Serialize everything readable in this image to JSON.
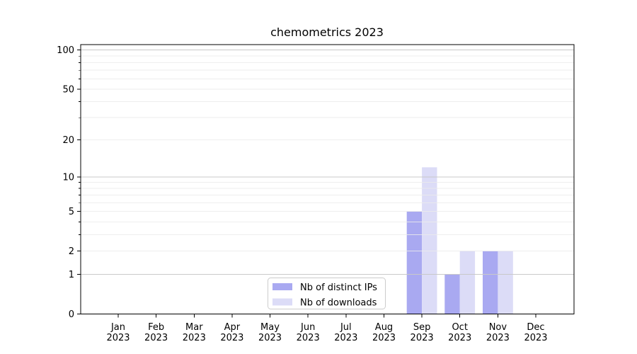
{
  "chart_data": {
    "type": "bar",
    "title": "chemometrics 2023",
    "categories": [
      {
        "line1": "Jan",
        "line2": "2023"
      },
      {
        "line1": "Feb",
        "line2": "2023"
      },
      {
        "line1": "Mar",
        "line2": "2023"
      },
      {
        "line1": "Apr",
        "line2": "2023"
      },
      {
        "line1": "May",
        "line2": "2023"
      },
      {
        "line1": "Jun",
        "line2": "2023"
      },
      {
        "line1": "Jul",
        "line2": "2023"
      },
      {
        "line1": "Aug",
        "line2": "2023"
      },
      {
        "line1": "Sep",
        "line2": "2023"
      },
      {
        "line1": "Oct",
        "line2": "2023"
      },
      {
        "line1": "Nov",
        "line2": "2023"
      },
      {
        "line1": "Dec",
        "line2": "2023"
      }
    ],
    "series": [
      {
        "name": "Nb of distinct IPs",
        "color": "#a9a9f1",
        "values": [
          0,
          0,
          0,
          0,
          0,
          0,
          0,
          0,
          5,
          1,
          2,
          0
        ]
      },
      {
        "name": "Nb of downloads",
        "color": "#dcdcf7",
        "values": [
          0,
          0,
          0,
          0,
          0,
          0,
          0,
          0,
          12,
          2,
          2,
          0
        ]
      }
    ],
    "yscale": "log1p",
    "ylim": [
      0,
      110
    ],
    "y_labeled_ticks": [
      0,
      1,
      2,
      5,
      10,
      20,
      50,
      100
    ],
    "y_major_gridlines": [
      1,
      10,
      100
    ],
    "y_minor_gridlines": [
      2,
      3,
      4,
      5,
      6,
      7,
      8,
      9,
      20,
      30,
      40,
      50,
      60,
      70,
      80,
      90
    ],
    "grid": true,
    "legend_position": "lower center",
    "colors": {
      "major_grid": "#c9c9c9",
      "minor_grid": "#ebebeb",
      "spine": "#000000",
      "legend_border": "#cccccc"
    }
  }
}
